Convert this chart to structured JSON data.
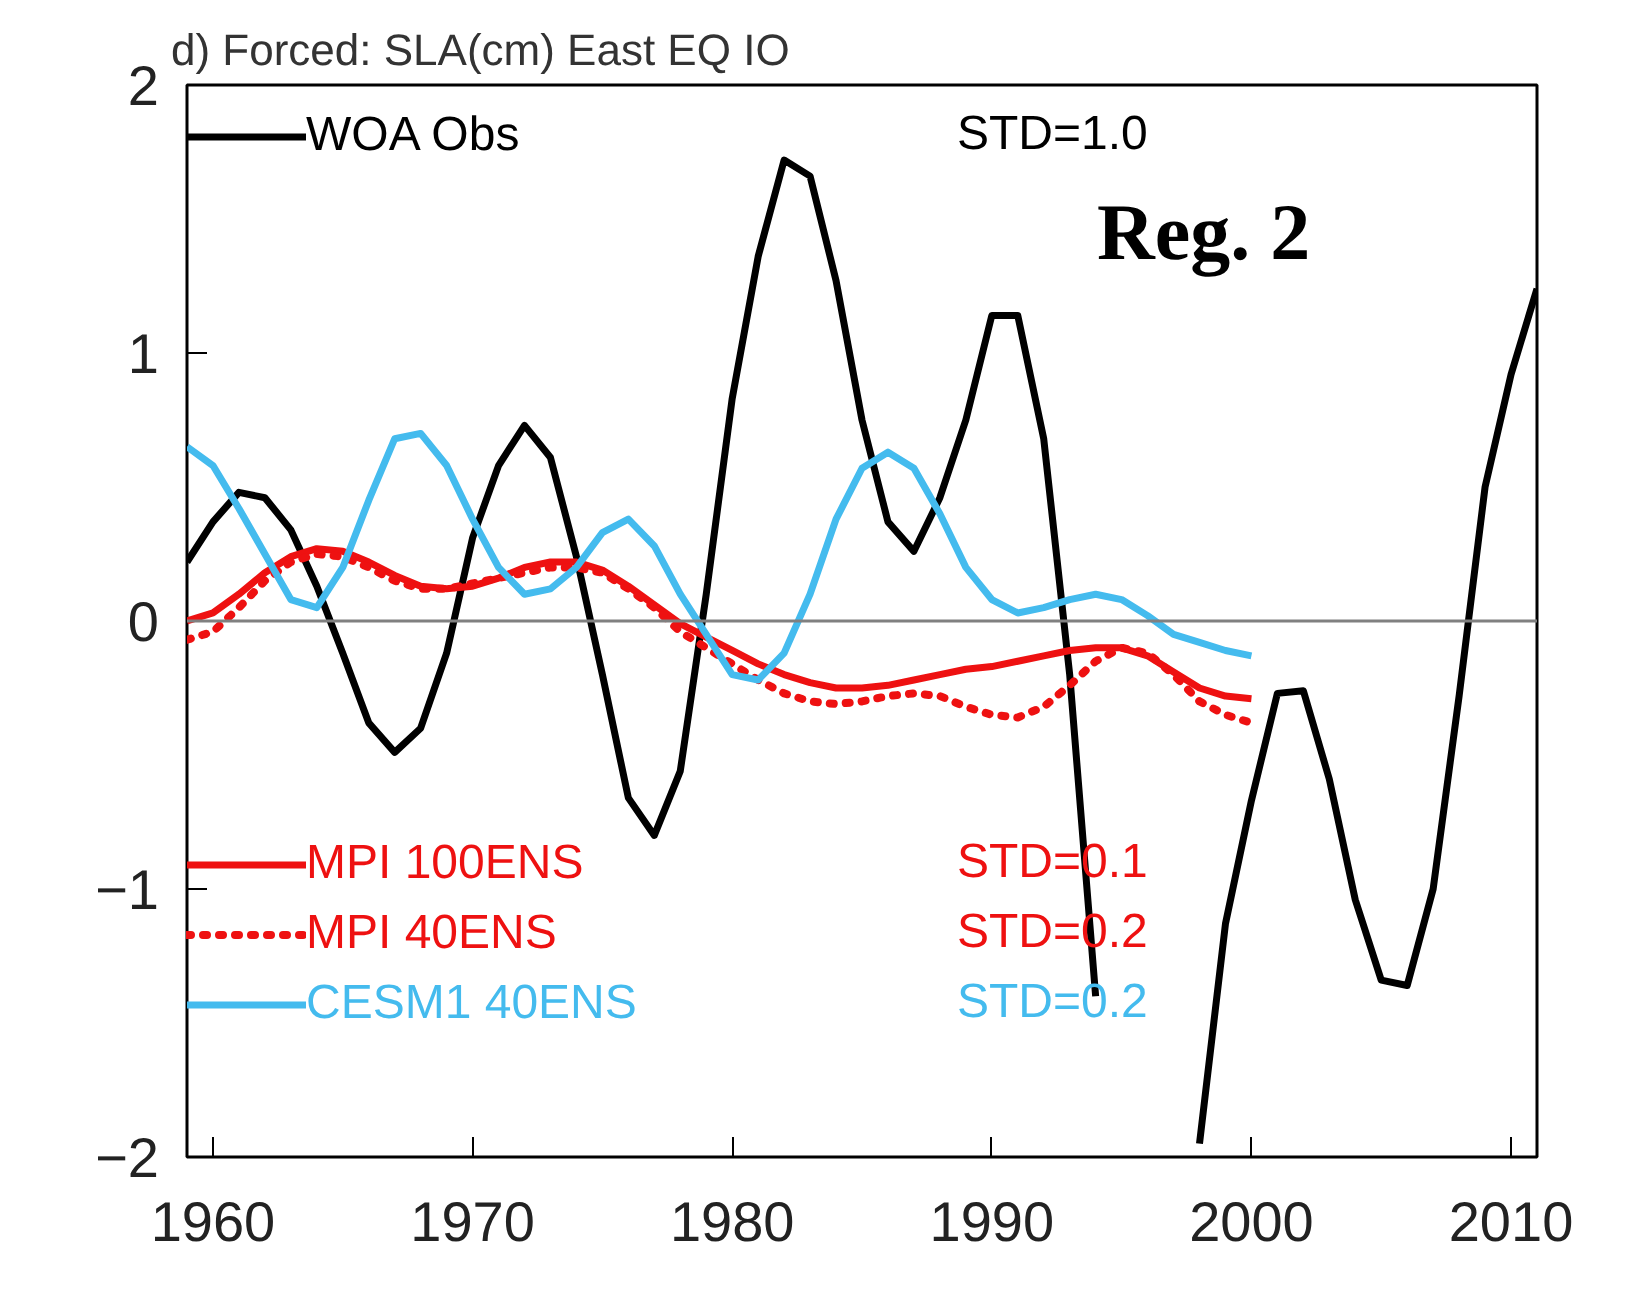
{
  "chart_data": {
    "type": "line",
    "title": "d) Forced: SLA(cm) East EQ IO",
    "xlim": [
      1959,
      2011
    ],
    "xticks": [
      1960,
      1970,
      1980,
      1990,
      2000,
      2010
    ],
    "ylim": [
      -2,
      2
    ],
    "yticks": [
      -2,
      -1,
      0,
      1,
      2
    ],
    "grid": false,
    "legend": "top left",
    "ref_lines": [
      {
        "axis": "y",
        "value": 0,
        "color": "#808080"
      }
    ],
    "annotations": [
      "STD=1.0",
      "STD=0.1",
      "STD=0.2",
      "STD=0.2",
      "Reg. 2"
    ],
    "series": [
      {
        "name": "WOA Obs",
        "color": "#000000",
        "line_style": "solid",
        "x": [
          1959,
          1960,
          1961,
          1962,
          1963,
          1964,
          1965,
          1966,
          1967,
          1968,
          1969,
          1970,
          1971,
          1972,
          1973,
          1974,
          1975,
          1976,
          1977,
          1978,
          1979,
          1980,
          1981,
          1982,
          1983,
          1984,
          1985,
          1986,
          1987,
          1988,
          1989,
          1990,
          1991,
          1992,
          1993,
          1994,
          1995,
          1996,
          1997,
          1998,
          1999,
          2000,
          2001,
          2002,
          2003,
          2004,
          2005,
          2006,
          2007,
          2008,
          2009,
          2010,
          2011
        ],
        "values": [
          0.22,
          0.37,
          0.48,
          0.46,
          0.34,
          0.13,
          -0.12,
          -0.38,
          -0.49,
          -0.4,
          -0.12,
          0.31,
          0.58,
          0.73,
          0.61,
          0.24,
          -0.2,
          -0.66,
          -0.8,
          -0.56,
          0.1,
          0.83,
          1.36,
          1.72,
          1.66,
          1.27,
          0.75,
          0.37,
          0.26,
          0.46,
          0.75,
          1.14,
          1.14,
          0.68,
          -0.2,
          -1.4,
          null,
          null,
          null,
          -1.95,
          -1.13,
          -0.67,
          -0.27,
          -0.26,
          -0.59,
          -1.04,
          -1.34,
          -1.36,
          -1.0,
          -0.28,
          0.5,
          0.92,
          1.24
        ]
      },
      {
        "name": "MPI 100ENS",
        "color": "#ee1111",
        "line_style": "solid",
        "x": [
          1959,
          1960,
          1961,
          1962,
          1963,
          1964,
          1965,
          1966,
          1967,
          1968,
          1969,
          1970,
          1971,
          1972,
          1973,
          1974,
          1975,
          1976,
          1977,
          1978,
          1979,
          1980,
          1981,
          1982,
          1983,
          1984,
          1985,
          1986,
          1987,
          1988,
          1989,
          1990,
          1991,
          1992,
          1993,
          1994,
          1995,
          1996,
          1997,
          1998,
          1999,
          2000
        ],
        "values": [
          0.0,
          0.03,
          0.1,
          0.18,
          0.24,
          0.27,
          0.26,
          0.22,
          0.17,
          0.13,
          0.12,
          0.13,
          0.16,
          0.2,
          0.22,
          0.22,
          0.19,
          0.13,
          0.06,
          -0.01,
          -0.06,
          -0.11,
          -0.16,
          -0.2,
          -0.23,
          -0.25,
          -0.25,
          -0.24,
          -0.22,
          -0.2,
          -0.18,
          -0.17,
          -0.15,
          -0.13,
          -0.11,
          -0.1,
          -0.1,
          -0.13,
          -0.19,
          -0.25,
          -0.28,
          -0.29
        ]
      },
      {
        "name": "MPI 40ENS",
        "color": "#ee1111",
        "line_style": "dotted",
        "x": [
          1959,
          1960,
          1961,
          1962,
          1963,
          1964,
          1965,
          1966,
          1967,
          1968,
          1969,
          1970,
          1971,
          1972,
          1973,
          1974,
          1975,
          1976,
          1977,
          1978,
          1979,
          1980,
          1981,
          1982,
          1983,
          1984,
          1985,
          1986,
          1987,
          1988,
          1989,
          1990,
          1991,
          1992,
          1993,
          1994,
          1995,
          1996,
          1997,
          1998,
          1999,
          2000
        ],
        "values": [
          -0.07,
          -0.04,
          0.05,
          0.15,
          0.22,
          0.25,
          0.24,
          0.2,
          0.15,
          0.12,
          0.12,
          0.14,
          0.16,
          0.18,
          0.2,
          0.2,
          0.18,
          0.12,
          0.05,
          -0.04,
          -0.1,
          -0.16,
          -0.22,
          -0.27,
          -0.3,
          -0.31,
          -0.3,
          -0.28,
          -0.27,
          -0.28,
          -0.32,
          -0.35,
          -0.36,
          -0.32,
          -0.24,
          -0.15,
          -0.1,
          -0.12,
          -0.2,
          -0.3,
          -0.35,
          -0.38
        ]
      },
      {
        "name": "CESM1 40ENS",
        "color": "#44bbee",
        "line_style": "solid",
        "x": [
          1959,
          1960,
          1961,
          1962,
          1963,
          1964,
          1965,
          1966,
          1967,
          1968,
          1969,
          1970,
          1971,
          1972,
          1973,
          1974,
          1975,
          1976,
          1977,
          1978,
          1979,
          1980,
          1981,
          1982,
          1983,
          1984,
          1985,
          1986,
          1987,
          1988,
          1989,
          1990,
          1991,
          1992,
          1993,
          1994,
          1995,
          1996,
          1997,
          1998,
          1999,
          2000
        ],
        "values": [
          0.65,
          0.58,
          0.42,
          0.25,
          0.08,
          0.05,
          0.2,
          0.45,
          0.68,
          0.7,
          0.58,
          0.38,
          0.2,
          0.1,
          0.12,
          0.2,
          0.33,
          0.38,
          0.28,
          0.1,
          -0.05,
          -0.2,
          -0.22,
          -0.12,
          0.1,
          0.38,
          0.57,
          0.63,
          0.57,
          0.4,
          0.2,
          0.08,
          0.03,
          0.05,
          0.08,
          0.1,
          0.08,
          0.02,
          -0.05,
          -0.08,
          -0.11,
          -0.13
        ]
      }
    ]
  }
}
